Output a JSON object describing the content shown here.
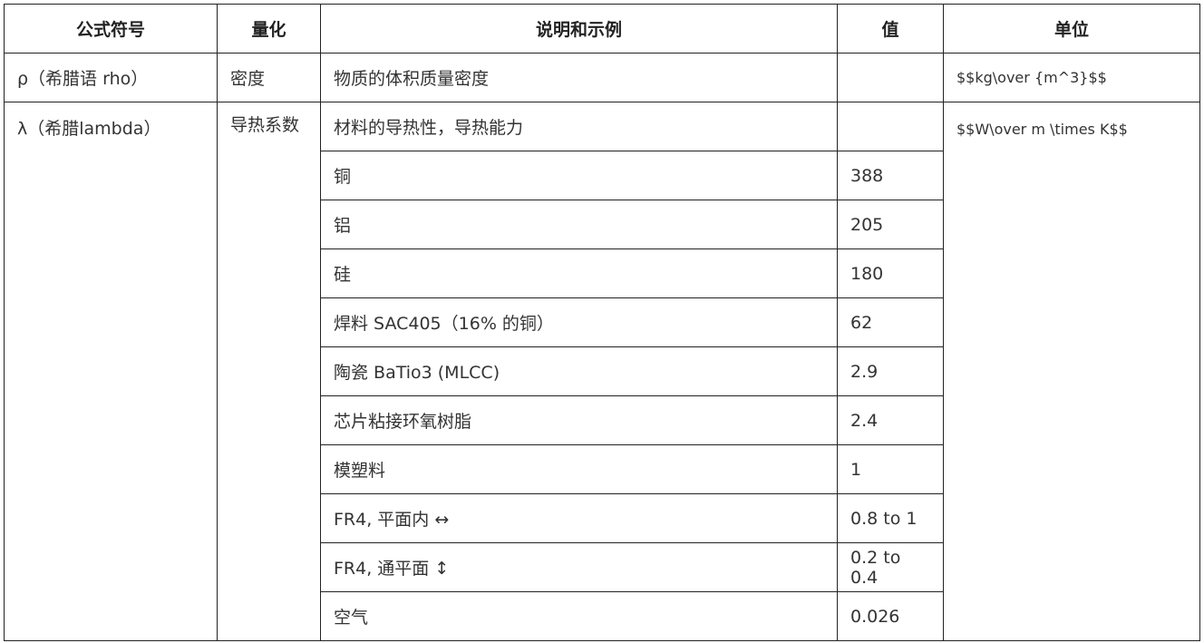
{
  "headers": [
    "公式符号",
    "量化",
    "说明和示例",
    "值",
    "单位"
  ],
  "rho": {
    "symbol": "ρ（希腊语 rho）",
    "quantity": "密度",
    "description": "物质的体积质量密度",
    "value": "",
    "unit": "$$kg\\over {m^3}$$"
  },
  "lambda": {
    "symbol": "λ（希腊lambda）",
    "quantity": "导热系数",
    "description": "材料的导热性，导热能力",
    "unit": "$$W\\over m \\times K$$",
    "examples": [
      {
        "material": "铜",
        "value": "388"
      },
      {
        "material": "铝",
        "value": "205"
      },
      {
        "material": "硅",
        "value": "180"
      },
      {
        "material": "焊料 SAC405（16% 的铜）",
        "value": "62"
      },
      {
        "material": "陶瓷 BaTio3 (MLCC)",
        "value": "2.9"
      },
      {
        "material": "芯片粘接环氧树脂",
        "value": "2.4"
      },
      {
        "material": "模塑料",
        "value": "1"
      },
      {
        "material": "FR4, 平面内 ↔",
        "value": "0.8 to 1"
      },
      {
        "material": "FR4, 通平面 ↕",
        "value": "0.2 to 0.4"
      },
      {
        "material": "空气",
        "value": "0.026"
      }
    ]
  }
}
